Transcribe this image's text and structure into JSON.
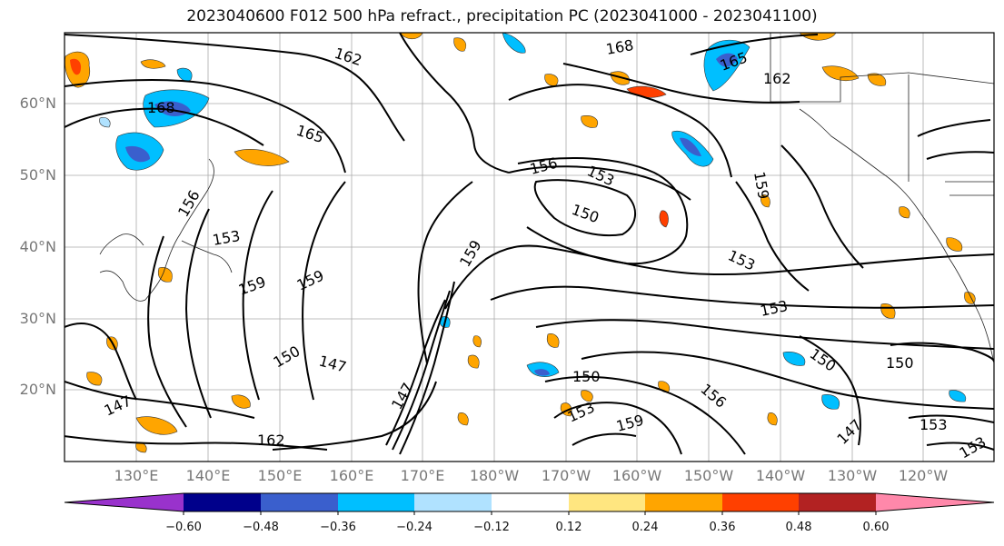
{
  "title": "2023040600 F012 500 hPa refract., precipitation PC (2023041000 - 2023041100)",
  "lat_labels": [
    "60°N",
    "50°N",
    "40°N",
    "30°N",
    "20°N"
  ],
  "lon_labels": [
    "130°E",
    "140°E",
    "150°E",
    "160°E",
    "170°E",
    "180°W",
    "170°W",
    "160°W",
    "150°W",
    "140°W",
    "130°W",
    "120°W"
  ],
  "contour_labels": [
    "162",
    "168",
    "165",
    "162",
    "168",
    "165",
    "156",
    "153",
    "150",
    "159",
    "153",
    "159",
    "159",
    "150",
    "147",
    "147",
    "153",
    "150",
    "150",
    "153",
    "156",
    "159",
    "153",
    "147",
    "150",
    "153",
    "162",
    "147",
    "159",
    "156",
    "153"
  ],
  "colorbar": {
    "labels": [
      "−0.60",
      "−0.48",
      "−0.36",
      "−0.24",
      "−0.12",
      "0.12",
      "0.24",
      "0.36",
      "0.48",
      "0.60"
    ],
    "colors": [
      "#9932cc",
      "#00008b",
      "#3a5fcd",
      "#00bfff",
      "#b0e2ff",
      "#ffffff",
      "#ffe680",
      "#ffa500",
      "#ff4000",
      "#b22222",
      "#ff88aa"
    ]
  }
}
